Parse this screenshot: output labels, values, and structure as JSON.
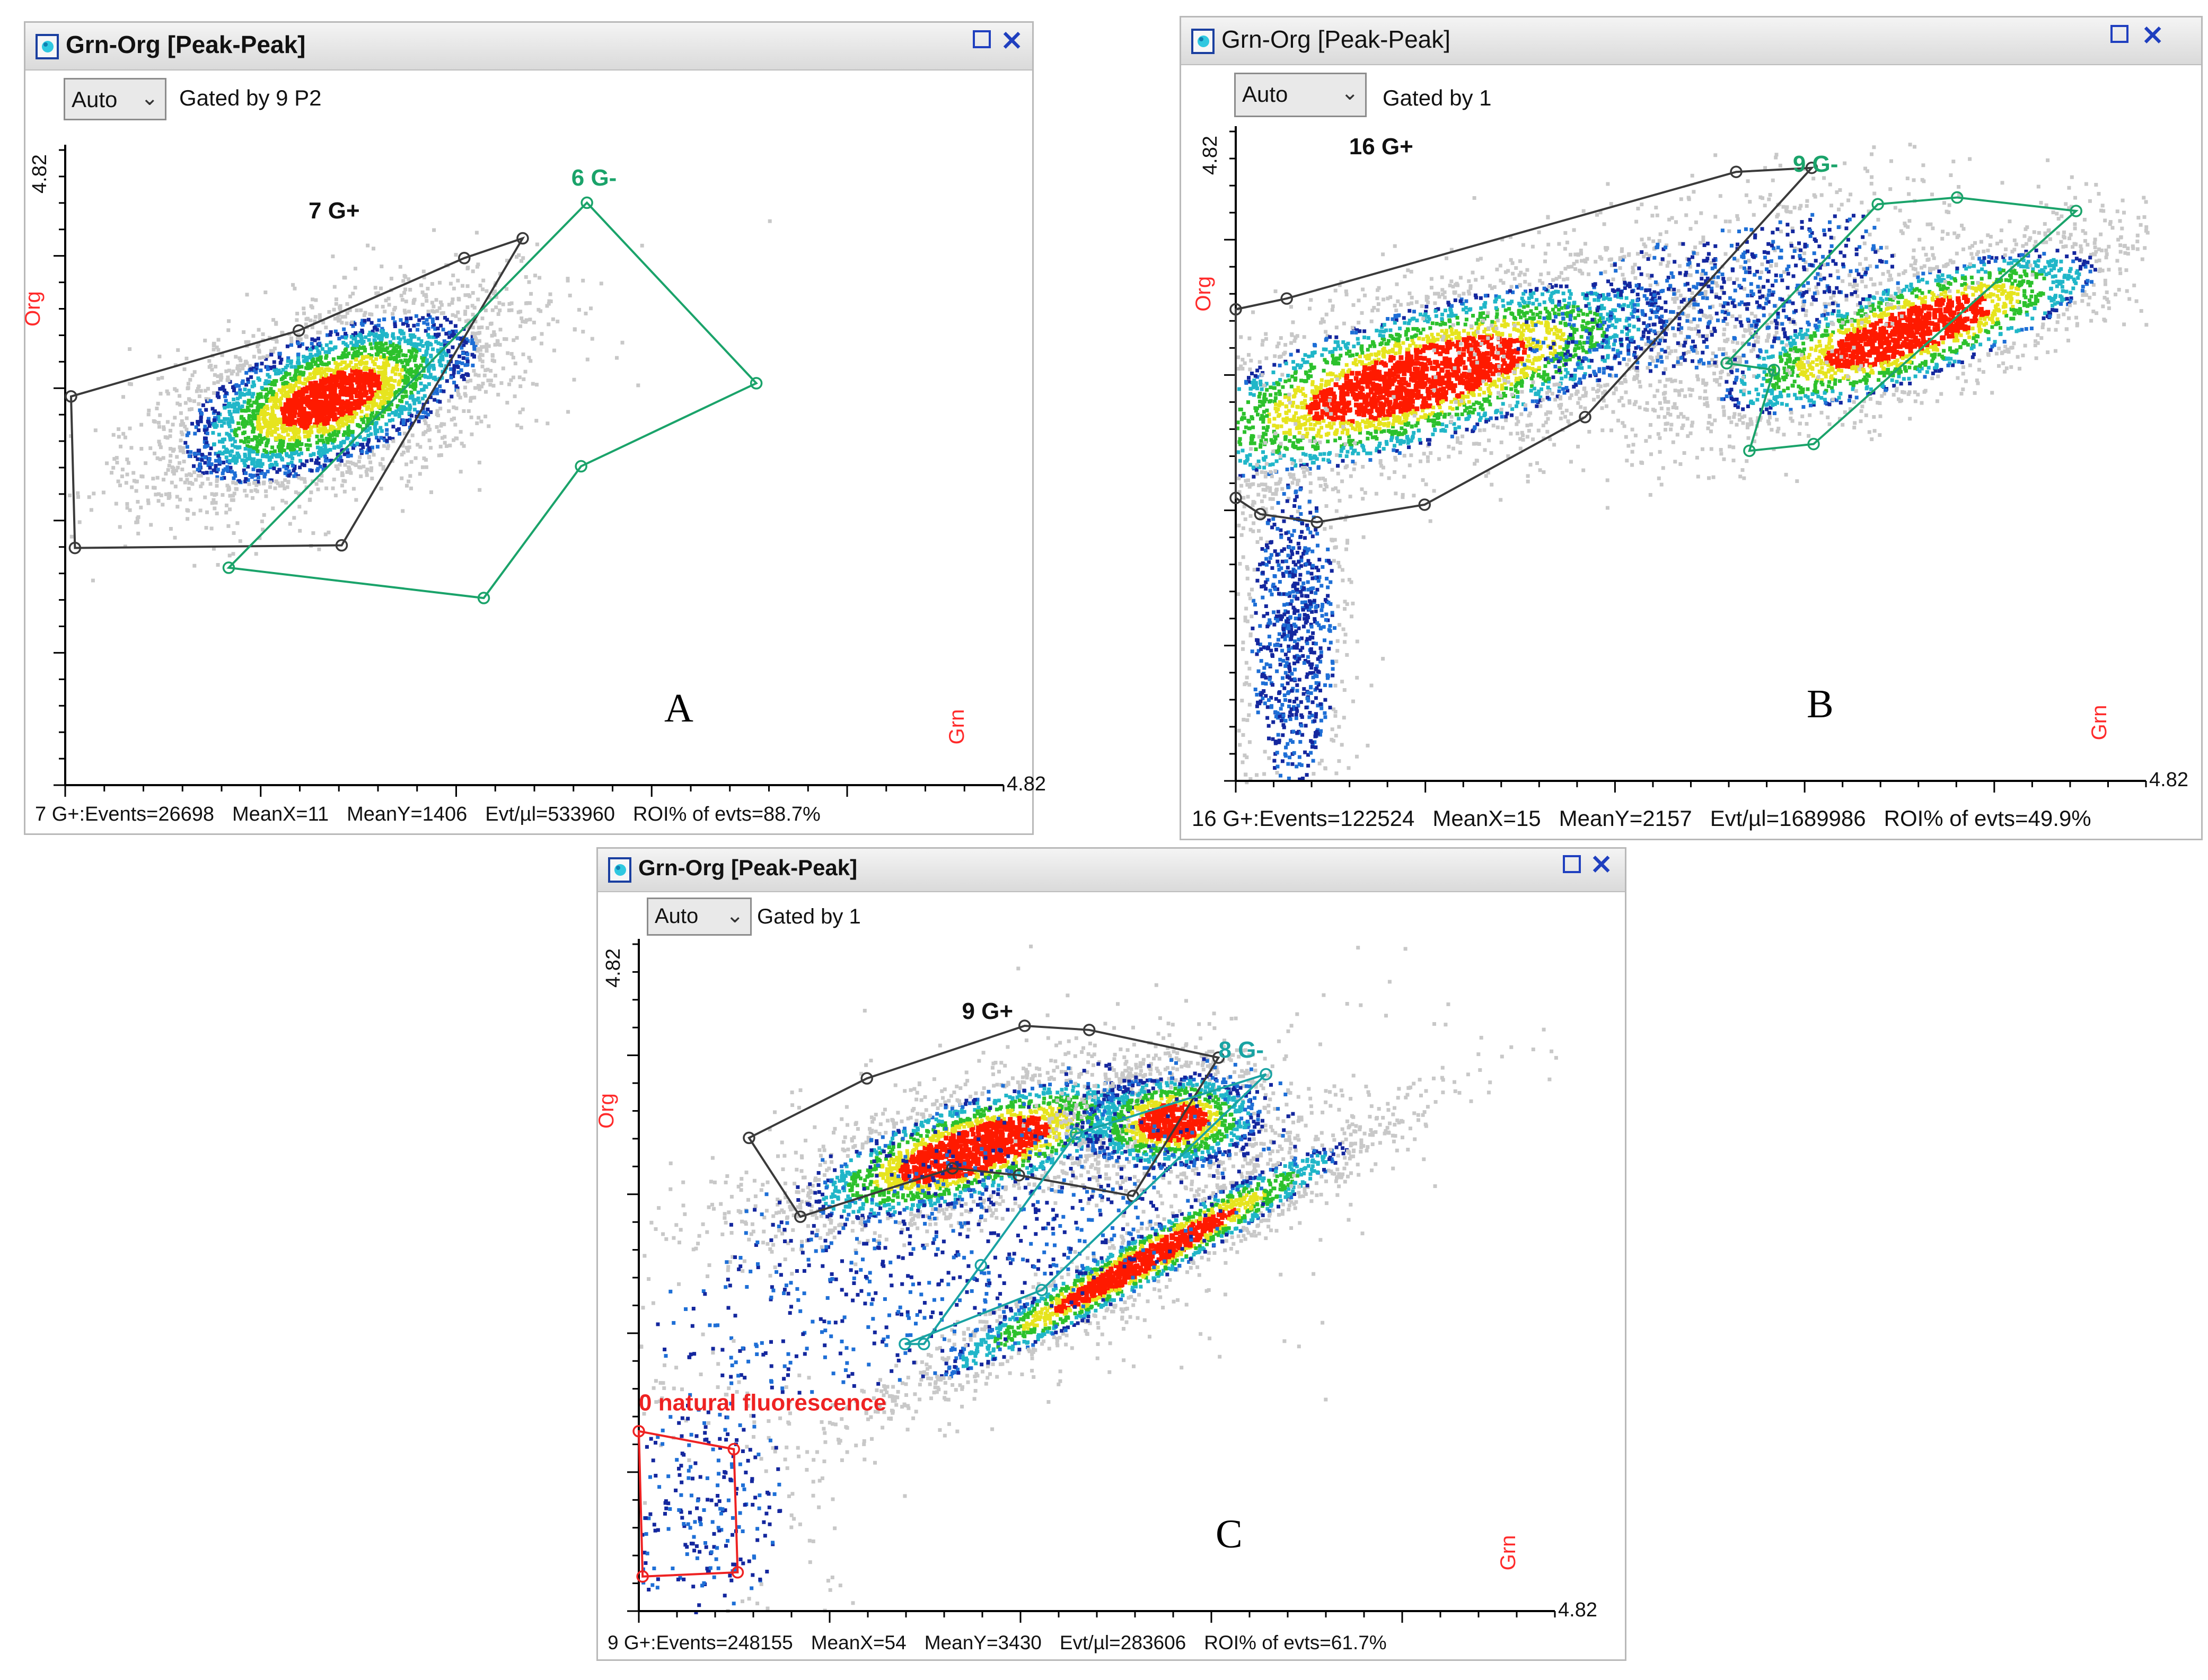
{
  "panels": [
    {
      "title": "Grn-Org [Peak-Peak]",
      "dropdown": "Auto",
      "gated_by": "Gated by 9 P2",
      "letter": "A",
      "y_label": "Org",
      "x_label": "Grn",
      "y_max_label": "4.82",
      "x_max_label": "4.82",
      "status": {
        "events": "7 G+:Events=26698",
        "mean_x": "MeanX=11",
        "mean_y": "MeanY=1406",
        "evt_per_ul": "Evt/µl=533960",
        "roi": "ROI% of evts=88.7%"
      }
    },
    {
      "title": "Grn-Org [Peak-Peak]",
      "dropdown": "Auto",
      "gated_by": "Gated by 1",
      "letter": "B",
      "y_label": "Org",
      "x_label": "Grn",
      "y_max_label": "4.82",
      "x_max_label": "4.82",
      "status": {
        "events": "16 G+:Events=122524",
        "mean_x": "MeanX=15",
        "mean_y": "MeanY=2157",
        "evt_per_ul": "Evt/µl=1689986",
        "roi": "ROI% of evts=49.9%"
      }
    },
    {
      "title": "Grn-Org [Peak-Peak]",
      "dropdown": "Auto",
      "gated_by": "Gated by 1",
      "letter": "C",
      "y_label": "Org",
      "x_label": "Grn",
      "y_max_label": "4.82",
      "x_max_label": "4.82",
      "status": {
        "events": "9 G+:Events=248155",
        "mean_x": "MeanX=54",
        "mean_y": "MeanY=3430",
        "evt_per_ul": "Evt/µl=283606",
        "roi": "ROI% of evts=61.7%"
      }
    }
  ],
  "colors": {
    "gate_black": "#3a3a3a",
    "gate_green": "#1aa36a",
    "gate_teal": "#19a3a3",
    "gate_red": "#ee2222",
    "axis_label": "#ff2a2a",
    "density": [
      "#c8c8c8",
      "#14279e",
      "#1e6fd6",
      "#20b6c8",
      "#2cc12c",
      "#e6e41e",
      "#ff1a00"
    ]
  },
  "chart_data": [
    {
      "type": "scatter",
      "panel": "A",
      "title": "Grn-Org [Peak-Peak]",
      "xlabel": "Grn",
      "ylabel": "Org",
      "xlim": [
        0,
        4.82
      ],
      "ylim": [
        0,
        4.82
      ],
      "axis_max_label": "4.82",
      "populations": [
        {
          "name": "main",
          "cx": 1.35,
          "cy": 2.95,
          "sx": 0.55,
          "sy": 0.28,
          "angle_deg": 37,
          "n": 3300,
          "core": 0.55
        }
      ],
      "gates": [
        {
          "label": "7 G+",
          "color": "black",
          "label_at": [
            1.25,
            4.3
          ],
          "vertices": [
            [
              0.03,
              2.95
            ],
            [
              1.2,
              3.45
            ],
            [
              2.05,
              4.0
            ],
            [
              2.35,
              4.15
            ],
            [
              1.42,
              1.82
            ],
            [
              0.05,
              1.8
            ]
          ]
        },
        {
          "label": "6 G-",
          "color": "green",
          "label_at": [
            2.6,
            4.55
          ],
          "vertices": [
            [
              2.68,
              4.42
            ],
            [
              3.55,
              3.05
            ],
            [
              2.65,
              2.42
            ],
            [
              2.15,
              1.42
            ],
            [
              0.84,
              1.65
            ]
          ]
        }
      ]
    },
    {
      "type": "scatter",
      "panel": "B",
      "title": "Grn-Org [Peak-Peak]",
      "xlabel": "Grn",
      "ylabel": "Org",
      "xlim": [
        0,
        4.82
      ],
      "ylim": [
        0,
        4.82
      ],
      "axis_max_label": "4.82",
      "populations": [
        {
          "name": "G+ cluster",
          "cx": 0.95,
          "cy": 3.0,
          "sx": 0.9,
          "sy": 0.3,
          "angle_deg": 24,
          "n": 3600,
          "core": 0.7
        },
        {
          "name": "G- cluster",
          "cx": 3.55,
          "cy": 3.35,
          "sx": 0.7,
          "sy": 0.22,
          "angle_deg": 28,
          "n": 2300,
          "core": 0.7
        },
        {
          "name": "bridge",
          "cx": 2.5,
          "cy": 3.6,
          "sx": 0.7,
          "sy": 0.3,
          "angle_deg": 25,
          "n": 900,
          "core": 0
        },
        {
          "name": "low column",
          "cx": 0.3,
          "cy": 1.1,
          "sx": 0.14,
          "sy": 0.7,
          "angle_deg": 0,
          "n": 900,
          "core": 0
        }
      ],
      "gates": [
        {
          "label": "16 G+",
          "color": "black",
          "label_at": [
            0.6,
            4.65
          ],
          "vertices": [
            [
              0.0,
              3.5
            ],
            [
              0.27,
              3.58
            ],
            [
              2.65,
              4.52
            ],
            [
              3.05,
              4.55
            ],
            [
              1.85,
              2.7
            ],
            [
              1.0,
              2.05
            ],
            [
              0.43,
              1.92
            ],
            [
              0.13,
              1.98
            ],
            [
              0.0,
              2.1
            ]
          ]
        },
        {
          "label": "9 G-",
          "color": "green",
          "label_at": [
            2.95,
            4.52
          ],
          "vertices": [
            [
              3.4,
              4.28
            ],
            [
              3.82,
              4.33
            ],
            [
              4.45,
              4.23
            ],
            [
              3.06,
              2.5
            ],
            [
              2.72,
              2.45
            ],
            [
              2.85,
              3.05
            ],
            [
              2.6,
              3.1
            ]
          ]
        }
      ]
    },
    {
      "type": "scatter",
      "panel": "C",
      "title": "Grn-Org [Peak-Peak]",
      "xlabel": "Grn",
      "ylabel": "Org",
      "xlim": [
        0,
        4.82
      ],
      "ylim": [
        0,
        4.82
      ],
      "axis_max_label": "4.82",
      "populations": [
        {
          "name": "G+ cluster 1",
          "cx": 1.75,
          "cy": 3.35,
          "sx": 0.58,
          "sy": 0.2,
          "angle_deg": 26,
          "n": 2300,
          "core": 0.75
        },
        {
          "name": "G+ cluster 2",
          "cx": 2.8,
          "cy": 3.55,
          "sx": 0.3,
          "sy": 0.22,
          "angle_deg": 10,
          "n": 1300,
          "core": 0.6
        },
        {
          "name": "G- cluster",
          "cx": 2.65,
          "cy": 2.55,
          "sx": 0.85,
          "sy": 0.1,
          "angle_deg": 38,
          "n": 1900,
          "core": 0.7
        },
        {
          "name": "scatter cloud",
          "cx": 1.8,
          "cy": 2.8,
          "sx": 1.2,
          "sy": 0.55,
          "angle_deg": 30,
          "n": 1200,
          "core": 0
        },
        {
          "name": "natural fluorescence",
          "cx": 0.3,
          "cy": 0.8,
          "sx": 0.3,
          "sy": 0.5,
          "angle_deg": 0,
          "n": 350,
          "core": 0
        }
      ],
      "gates": [
        {
          "label": "9 G+",
          "color": "black",
          "label_at": [
            1.7,
            4.28
          ],
          "vertices": [
            [
              0.58,
              3.42
            ],
            [
              1.2,
              3.85
            ],
            [
              2.03,
              4.23
            ],
            [
              2.37,
              4.2
            ],
            [
              3.05,
              4.0
            ],
            [
              2.6,
              3.0
            ],
            [
              2.0,
              3.15
            ],
            [
              1.65,
              3.2
            ],
            [
              0.85,
              2.85
            ]
          ]
        },
        {
          "label": "8 G-",
          "color": "teal",
          "label_at": [
            3.05,
            4.0
          ],
          "vertices": [
            [
              3.3,
              3.88
            ],
            [
              2.3,
              3.45
            ],
            [
              1.8,
              2.5
            ],
            [
              1.5,
              1.93
            ],
            [
              1.4,
              1.93
            ],
            [
              2.12,
              2.32
            ]
          ]
        },
        {
          "label": "0 natural fluorescence",
          "color": "red",
          "label_at": [
            0.0,
            1.45
          ],
          "vertices": [
            [
              0.0,
              1.3
            ],
            [
              0.5,
              1.17
            ],
            [
              0.52,
              0.28
            ],
            [
              0.02,
              0.25
            ]
          ]
        }
      ]
    }
  ]
}
